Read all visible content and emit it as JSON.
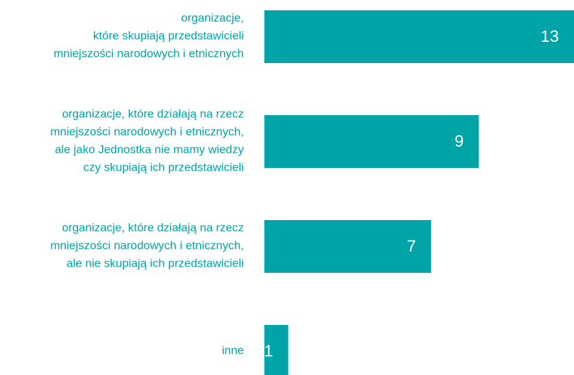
{
  "chart_data": {
    "type": "barh",
    "categories": [
      "organizacje,\nktóre skupiają przedstawicieli\nmniejszości  narodowych i etnicznych",
      "organizacje, które działają na rzecz\nmniejszości narodowych i etnicznych,\nale jako Jednostka nie mamy wiedzy\nczy skupiają ich przedstawicieli",
      "organizacje, które działają na rzecz\nmniejszości narodowych i etnicznych,\nale nie skupiają ich przedstawicieli",
      "inne"
    ],
    "values": [
      13,
      9,
      7,
      1
    ],
    "color": "#00a4a7"
  }
}
